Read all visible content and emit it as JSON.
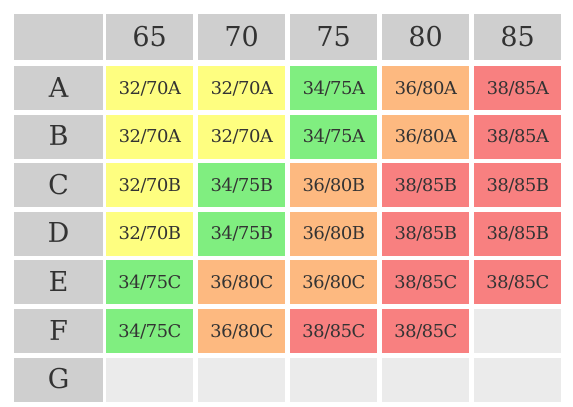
{
  "table": {
    "columns": [
      "65",
      "70",
      "75",
      "80",
      "85"
    ],
    "rows": [
      {
        "label": "A",
        "cells": [
          {
            "text": "32/70A",
            "color": "#fefe80"
          },
          {
            "text": "32/70A",
            "color": "#fefe80"
          },
          {
            "text": "34/75A",
            "color": "#80ee80"
          },
          {
            "text": "36/80A",
            "color": "#fdb980"
          },
          {
            "text": "38/85A",
            "color": "#f88080"
          }
        ]
      },
      {
        "label": "B",
        "cells": [
          {
            "text": "32/70A",
            "color": "#fefe80"
          },
          {
            "text": "32/70A",
            "color": "#fefe80"
          },
          {
            "text": "34/75A",
            "color": "#80ee80"
          },
          {
            "text": "36/80A",
            "color": "#fdb980"
          },
          {
            "text": "38/85A",
            "color": "#f88080"
          }
        ]
      },
      {
        "label": "C",
        "cells": [
          {
            "text": "32/70B",
            "color": "#fefe80"
          },
          {
            "text": "34/75B",
            "color": "#80ee80"
          },
          {
            "text": "36/80B",
            "color": "#fdb980"
          },
          {
            "text": "38/85B",
            "color": "#f88080"
          },
          {
            "text": "38/85B",
            "color": "#f88080"
          }
        ]
      },
      {
        "label": "D",
        "cells": [
          {
            "text": "32/70B",
            "color": "#fefe80"
          },
          {
            "text": "34/75B",
            "color": "#80ee80"
          },
          {
            "text": "36/80B",
            "color": "#fdb980"
          },
          {
            "text": "38/85B",
            "color": "#f88080"
          },
          {
            "text": "38/85B",
            "color": "#f88080"
          }
        ]
      },
      {
        "label": "E",
        "cells": [
          {
            "text": "34/75C",
            "color": "#80ee80"
          },
          {
            "text": "36/80C",
            "color": "#fdb980"
          },
          {
            "text": "36/80C",
            "color": "#fdb980"
          },
          {
            "text": "38/85C",
            "color": "#f88080"
          },
          {
            "text": "38/85C",
            "color": "#f88080"
          }
        ]
      },
      {
        "label": "F",
        "cells": [
          {
            "text": "34/75C",
            "color": "#80ee80"
          },
          {
            "text": "36/80C",
            "color": "#fdb980"
          },
          {
            "text": "38/85C",
            "color": "#f88080"
          },
          {
            "text": "38/85C",
            "color": "#f88080"
          },
          null
        ]
      },
      {
        "label": "G",
        "cells": [
          null,
          null,
          null,
          null,
          null
        ]
      }
    ]
  }
}
